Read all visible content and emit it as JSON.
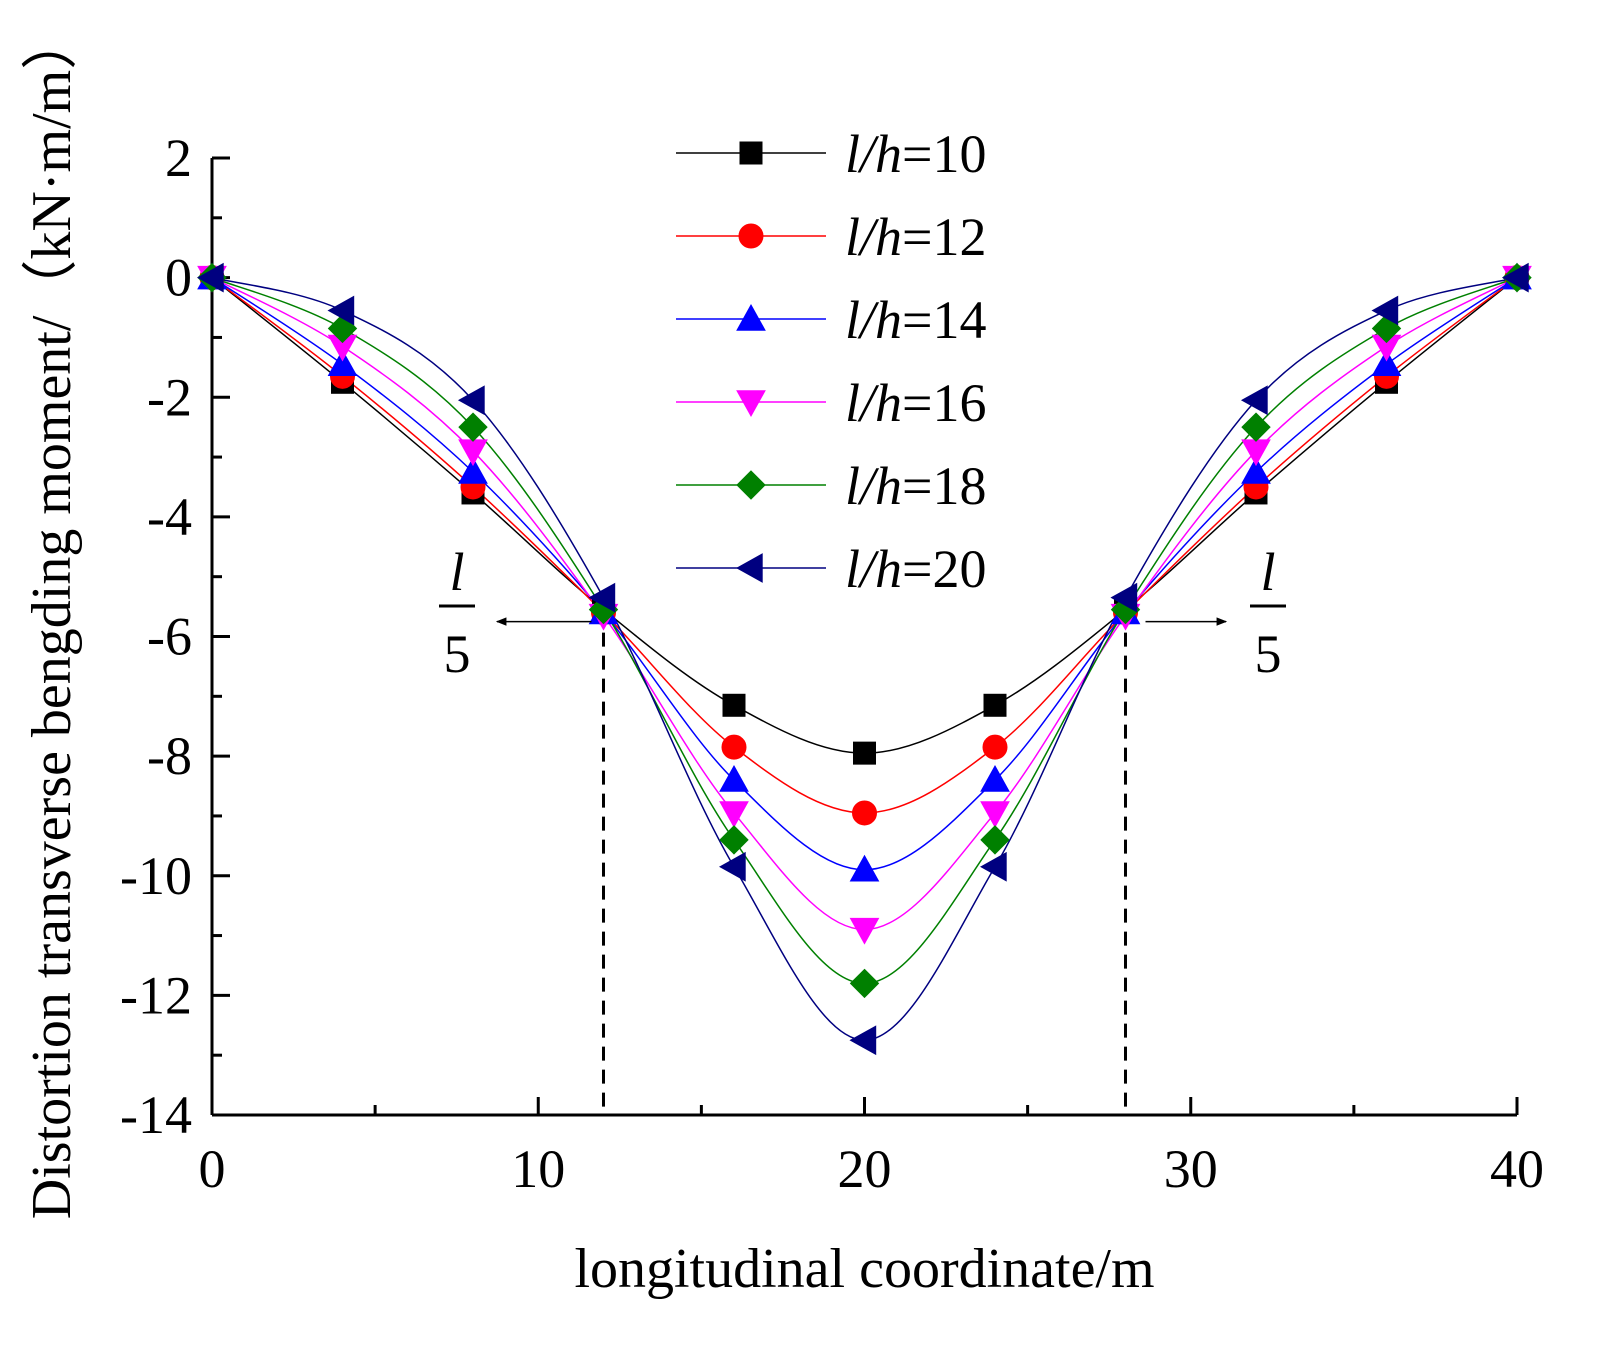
{
  "chart_data": {
    "type": "line",
    "title": "",
    "xlabel": "longitudinal coordinate/m",
    "ylabel": "Distortion transverse bengding moment/（kN·m/m）",
    "xlim": [
      0,
      40
    ],
    "ylim": [
      -14,
      2
    ],
    "xticks": [
      0,
      10,
      20,
      30,
      40
    ],
    "yticks": [
      2,
      0,
      -2,
      -4,
      -6,
      -8,
      -10,
      -12,
      -14
    ],
    "x": [
      0,
      4,
      8,
      12,
      16,
      20,
      24,
      28,
      32,
      36,
      40
    ],
    "series": [
      {
        "name": "l/h=10",
        "name_italic": "l/h",
        "name_value": "=10",
        "color": "#000000",
        "marker": "square",
        "values": [
          0,
          -1.75,
          -3.6,
          -5.55,
          -7.15,
          -7.95,
          -7.15,
          -5.55,
          -3.6,
          -1.75,
          0
        ]
      },
      {
        "name": "l/h=12",
        "name_italic": "l/h",
        "name_value": "=12",
        "color": "#ff0000",
        "marker": "circle",
        "values": [
          0,
          -1.65,
          -3.5,
          -5.6,
          -7.85,
          -8.95,
          -7.85,
          -5.6,
          -3.5,
          -1.65,
          0
        ]
      },
      {
        "name": "l/h=14",
        "name_italic": "l/h",
        "name_value": "=14",
        "color": "#0000ff",
        "marker": "triangle-up",
        "values": [
          0,
          -1.45,
          -3.25,
          -5.6,
          -8.4,
          -9.9,
          -8.4,
          -5.6,
          -3.25,
          -1.45,
          0
        ]
      },
      {
        "name": "l/h=16",
        "name_italic": "l/h",
        "name_value": "=16",
        "color": "#ff00ff",
        "marker": "triangle-down",
        "values": [
          0,
          -1.15,
          -2.9,
          -5.65,
          -8.95,
          -10.9,
          -8.95,
          -5.65,
          -2.9,
          -1.15,
          0
        ]
      },
      {
        "name": "l/h=18",
        "name_italic": "l/h",
        "name_value": "=18",
        "color": "#008000",
        "marker": "diamond",
        "values": [
          0,
          -0.85,
          -2.5,
          -5.55,
          -9.4,
          -11.8,
          -9.4,
          -5.55,
          -2.5,
          -0.85,
          0
        ]
      },
      {
        "name": "l/h=20",
        "name_italic": "l/h",
        "name_value": "=20",
        "color": "#000080",
        "marker": "triangle-left",
        "values": [
          0,
          -0.55,
          -2.05,
          -5.35,
          -9.85,
          -12.75,
          -9.85,
          -5.35,
          -2.05,
          -0.55,
          0
        ]
      }
    ],
    "reference_lines": [
      12,
      28
    ],
    "annotations": [
      {
        "numerator": "l",
        "denominator": "5",
        "x": 12,
        "y": -5.6,
        "arrow": "left"
      },
      {
        "numerator": "l",
        "denominator": "5",
        "x": 28,
        "y": -5.6,
        "arrow": "right"
      }
    ],
    "legend_position": "top-center"
  }
}
